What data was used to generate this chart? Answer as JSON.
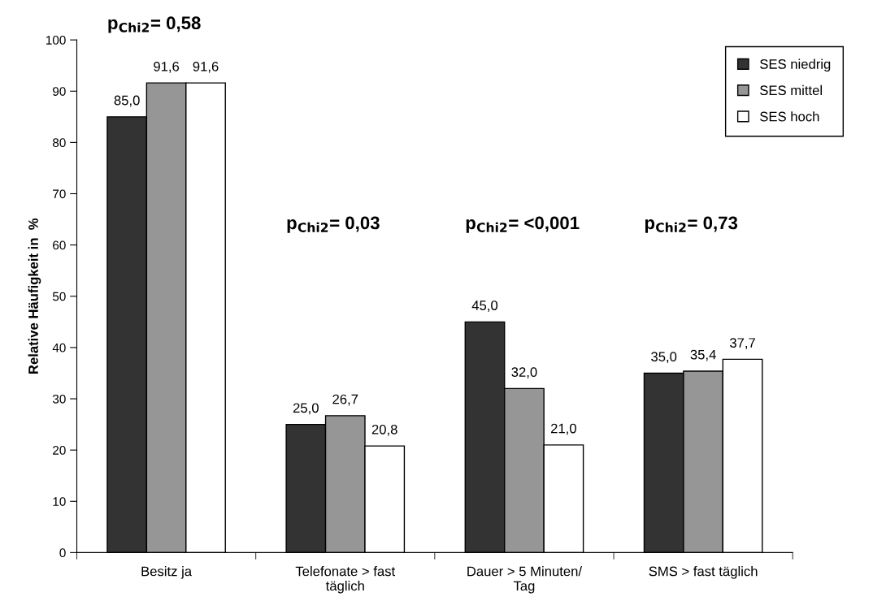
{
  "chart_data": {
    "type": "bar",
    "ylabel": "Relative Häufigkeit in  %",
    "categories": [
      "Besitz ja",
      "Telefonate > fast\ntäglich",
      "Dauer > 5 Minuten/\nTag",
      "SMS > fast täglich"
    ],
    "series": [
      {
        "name": "SES niedrig",
        "color": "#333333",
        "values": [
          85.0,
          25.0,
          45.0,
          35.0
        ],
        "value_labels": [
          "85,0",
          "25,0",
          "45,0",
          "35,0"
        ]
      },
      {
        "name": "SES mittel",
        "color": "#969696",
        "values": [
          91.6,
          26.7,
          32.0,
          35.4
        ],
        "value_labels": [
          "91,6",
          "26,7",
          "32,0",
          "35,4"
        ]
      },
      {
        "name": "SES hoch",
        "color": "#ffffff",
        "values": [
          91.6,
          20.8,
          21.0,
          37.7
        ],
        "value_labels": [
          "91,6",
          "20,8",
          "21,0",
          "37,7"
        ]
      }
    ],
    "ylim": [
      0,
      100
    ],
    "yticks": [
      0,
      10,
      20,
      30,
      40,
      50,
      60,
      70,
      80,
      90,
      100
    ],
    "grid": false,
    "legend": "top right",
    "annotations": [
      "p$_{Chi2}$= 0,58",
      "p$_{Chi2}$= 0,03",
      "p$_{Chi2}$= <0,001",
      "p$_{Chi2}$= 0,73"
    ]
  }
}
